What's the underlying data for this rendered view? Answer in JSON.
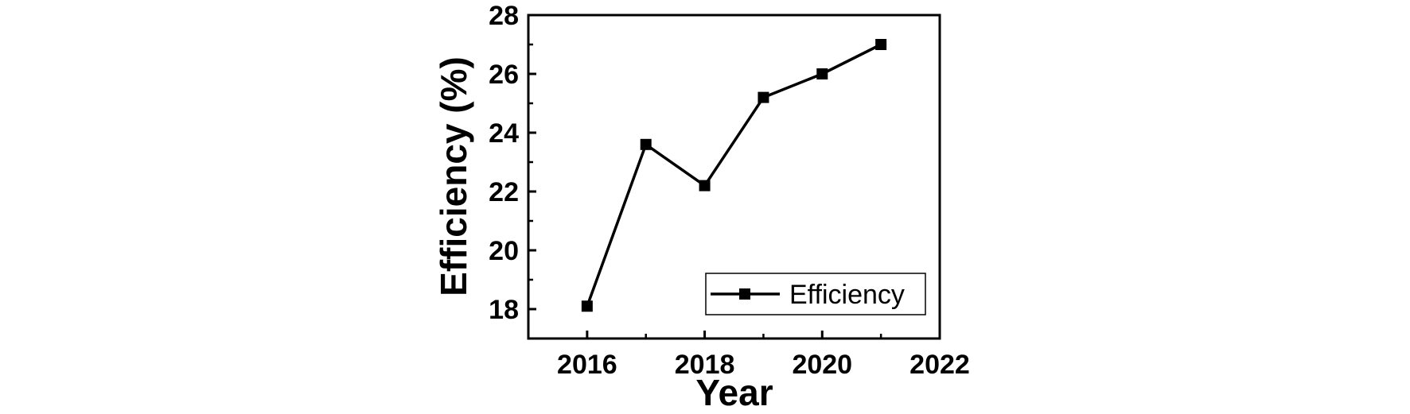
{
  "chart_data": {
    "type": "line",
    "xlabel": "Year",
    "ylabel": "Efficiency (%)",
    "xlim": [
      2015,
      2022
    ],
    "ylim": [
      17,
      28
    ],
    "x_ticks": [
      2016,
      2018,
      2020,
      2022
    ],
    "y_ticks": [
      18,
      20,
      22,
      24,
      26,
      28
    ],
    "grid": false,
    "legend_position": "bottom-right",
    "series": [
      {
        "name": "Efficiency",
        "color": "#000000",
        "marker": "square",
        "x": [
          2016,
          2017,
          2018,
          2019,
          2020,
          2021
        ],
        "y": [
          18.1,
          23.6,
          22.2,
          25.2,
          26.0,
          27.0
        ]
      }
    ]
  }
}
